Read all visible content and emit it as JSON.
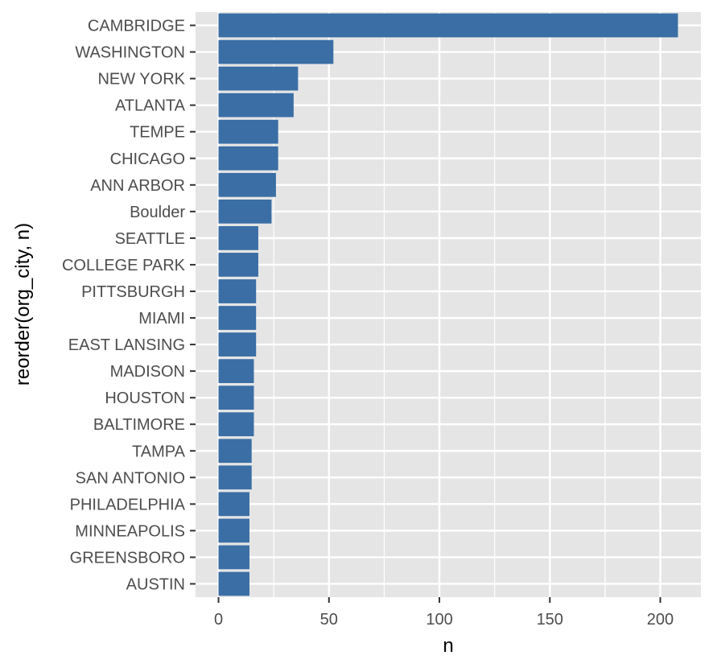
{
  "chart_data": {
    "type": "bar",
    "orientation": "horizontal",
    "categories": [
      "CAMBRIDGE",
      "WASHINGTON",
      "NEW YORK",
      "ATLANTA",
      "TEMPE",
      "CHICAGO",
      "ANN ARBOR",
      "Boulder",
      "SEATTLE",
      "COLLEGE PARK",
      "PITTSBURGH",
      "MIAMI",
      "EAST LANSING",
      "MADISON",
      "HOUSTON",
      "BALTIMORE",
      "TAMPA",
      "SAN ANTONIO",
      "PHILADELPHIA",
      "MINNEAPOLIS",
      "GREENSBORO",
      "AUSTIN"
    ],
    "values": [
      208,
      52,
      36,
      34,
      27,
      27,
      26,
      24,
      18,
      18,
      17,
      17,
      17,
      16,
      16,
      16,
      15,
      15,
      14,
      14,
      14,
      14
    ],
    "xlabel": "n",
    "ylabel": "reorder(org_city, n)",
    "xlim": [
      -10.4,
      218.4
    ],
    "xticks": [
      0,
      50,
      100,
      150,
      200
    ],
    "xtick_labels": [
      "0",
      "50",
      "100",
      "150",
      "200"
    ],
    "grid": true,
    "bar_color": "#3A6EA5",
    "panel_background": "#E5E5E5",
    "grid_color": "#FFFFFF"
  }
}
